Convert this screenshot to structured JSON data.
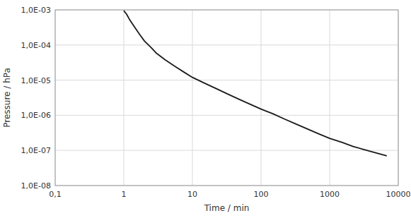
{
  "chart_data": {
    "type": "line",
    "xlabel": "Time / min",
    "ylabel": "Pressure / hPa",
    "log": true,
    "grid": true,
    "xlim": [
      0.1,
      10000
    ],
    "ylim": [
      1e-08,
      0.001
    ],
    "xticks": [
      {
        "value": 0.1,
        "label": "0,1"
      },
      1,
      10,
      100,
      1000,
      10000
    ],
    "yticks": [
      {
        "value": 1e-08,
        "label": "1,0E-08"
      },
      {
        "value": 1e-07,
        "label": "1,0E-07"
      },
      {
        "value": 1e-06,
        "label": "1,0E-06"
      },
      {
        "value": 1e-05,
        "label": "1,0E-05"
      },
      {
        "value": 0.0001,
        "label": "1,0E-04"
      },
      {
        "value": 0.001,
        "label": "1,0E-03"
      }
    ],
    "x": [
      1.0,
      1.1,
      1.2,
      1.4,
      1.7,
      2.0,
      2.5,
      3.0,
      4.0,
      5.5,
      7.5,
      10,
      15,
      22,
      32,
      47,
      68,
      100,
      150,
      220,
      320,
      470,
      680,
      1000,
      1500,
      2200,
      3200,
      4700,
      6800
    ],
    "values": [
      0.00095,
      0.00075,
      0.00055,
      0.00035,
      0.0002,
      0.00013,
      8.5e-05,
      5.8e-05,
      3.8e-05,
      2.5e-05,
      1.7e-05,
      1.2e-05,
      8.2e-06,
      5.8e-06,
      4.1e-06,
      2.9e-06,
      2.1e-06,
      1.5e-06,
      1.1e-06,
      7.8e-07,
      5.7e-07,
      4.1e-07,
      3e-07,
      2.2e-07,
      1.7e-07,
      1.3e-07,
      1.05e-07,
      8.5e-08,
      7e-08
    ],
    "color": "#1a1a1a"
  }
}
